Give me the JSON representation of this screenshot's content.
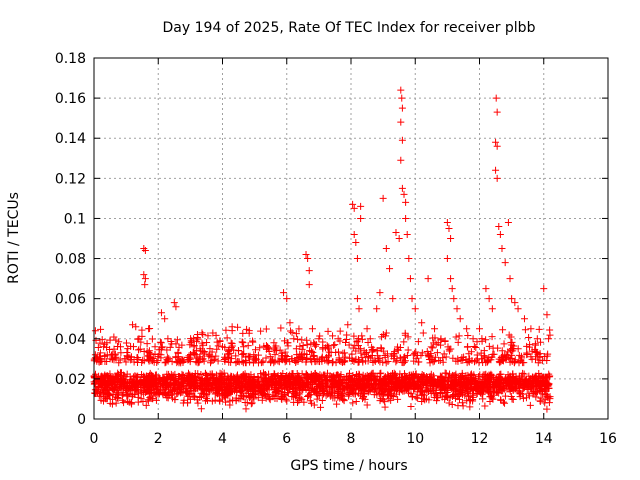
{
  "chart_data": {
    "type": "scatter",
    "title": "Day 194 of 2025, Rate Of TEC Index for receiver plbb",
    "xlabel": "GPS time / hours",
    "ylabel": "ROTI / TECUs",
    "xlim": [
      0,
      16
    ],
    "ylim": [
      0,
      0.18
    ],
    "xticks": [
      0,
      2,
      4,
      6,
      8,
      10,
      12,
      14,
      16
    ],
    "yticks": [
      0,
      0.02,
      0.04,
      0.06,
      0.08,
      0.1,
      0.12,
      0.14,
      0.16,
      0.18
    ],
    "xtick_labels": [
      "0",
      "2",
      "4",
      "6",
      "8",
      "10",
      "12",
      "14",
      "16"
    ],
    "ytick_labels": [
      "0",
      "0.02",
      "0.04",
      "0.06",
      "0.08",
      "0.1",
      "0.12",
      "0.14",
      "0.16",
      "0.18"
    ],
    "grid": true,
    "marker": "+",
    "color": "#ff0000",
    "series": [
      {
        "name": "ROTI",
        "dense_band": {
          "x_start": 0.0,
          "x_end": 14.2,
          "y_min": 0.004,
          "y_max": 0.028
        },
        "points": [
          [
            0.1,
            0.03
          ],
          [
            0.2,
            0.033
          ],
          [
            0.3,
            0.036
          ],
          [
            0.4,
            0.038
          ],
          [
            0.5,
            0.03
          ],
          [
            1.2,
            0.047
          ],
          [
            1.3,
            0.046
          ],
          [
            1.4,
            0.04
          ],
          [
            1.55,
            0.085
          ],
          [
            1.6,
            0.084
          ],
          [
            1.55,
            0.072
          ],
          [
            1.6,
            0.07
          ],
          [
            1.58,
            0.067
          ],
          [
            1.7,
            0.045
          ],
          [
            1.9,
            0.036
          ],
          [
            2.1,
            0.053
          ],
          [
            2.2,
            0.05
          ],
          [
            2.3,
            0.04
          ],
          [
            2.5,
            0.058
          ],
          [
            2.55,
            0.056
          ],
          [
            3.1,
            0.04
          ],
          [
            3.3,
            0.035
          ],
          [
            3.6,
            0.032
          ],
          [
            4.0,
            0.036
          ],
          [
            4.3,
            0.046
          ],
          [
            4.5,
            0.034
          ],
          [
            5.0,
            0.03
          ],
          [
            5.4,
            0.036
          ],
          [
            5.6,
            0.038
          ],
          [
            5.9,
            0.063
          ],
          [
            6.0,
            0.06
          ],
          [
            6.1,
            0.048
          ],
          [
            6.3,
            0.035
          ],
          [
            6.6,
            0.082
          ],
          [
            6.65,
            0.08
          ],
          [
            6.7,
            0.074
          ],
          [
            6.7,
            0.067
          ],
          [
            6.8,
            0.045
          ],
          [
            7.0,
            0.04
          ],
          [
            7.3,
            0.035
          ],
          [
            7.6,
            0.04
          ],
          [
            7.8,
            0.033
          ],
          [
            7.9,
            0.047
          ],
          [
            8.05,
            0.107
          ],
          [
            8.1,
            0.105
          ],
          [
            8.1,
            0.092
          ],
          [
            8.15,
            0.088
          ],
          [
            8.2,
            0.08
          ],
          [
            8.2,
            0.06
          ],
          [
            8.25,
            0.055
          ],
          [
            8.3,
            0.106
          ],
          [
            8.3,
            0.1
          ],
          [
            8.5,
            0.045
          ],
          [
            8.6,
            0.04
          ],
          [
            8.8,
            0.055
          ],
          [
            8.9,
            0.063
          ],
          [
            9.0,
            0.11
          ],
          [
            9.1,
            0.085
          ],
          [
            9.2,
            0.075
          ],
          [
            9.3,
            0.06
          ],
          [
            9.4,
            0.093
          ],
          [
            9.5,
            0.09
          ],
          [
            9.55,
            0.164
          ],
          [
            9.58,
            0.16
          ],
          [
            9.6,
            0.155
          ],
          [
            9.55,
            0.148
          ],
          [
            9.6,
            0.139
          ],
          [
            9.55,
            0.129
          ],
          [
            9.6,
            0.115
          ],
          [
            9.65,
            0.112
          ],
          [
            9.7,
            0.108
          ],
          [
            9.7,
            0.1
          ],
          [
            9.75,
            0.092
          ],
          [
            9.8,
            0.08
          ],
          [
            9.85,
            0.07
          ],
          [
            9.9,
            0.06
          ],
          [
            10.0,
            0.055
          ],
          [
            10.2,
            0.048
          ],
          [
            10.4,
            0.07
          ],
          [
            10.6,
            0.045
          ],
          [
            10.8,
            0.04
          ],
          [
            11.0,
            0.098
          ],
          [
            11.05,
            0.095
          ],
          [
            11.1,
            0.09
          ],
          [
            11.0,
            0.08
          ],
          [
            11.1,
            0.07
          ],
          [
            11.15,
            0.065
          ],
          [
            11.2,
            0.06
          ],
          [
            11.3,
            0.055
          ],
          [
            11.4,
            0.05
          ],
          [
            11.6,
            0.045
          ],
          [
            11.8,
            0.04
          ],
          [
            12.0,
            0.045
          ],
          [
            12.2,
            0.065
          ],
          [
            12.3,
            0.06
          ],
          [
            12.4,
            0.055
          ],
          [
            12.52,
            0.16
          ],
          [
            12.55,
            0.153
          ],
          [
            12.5,
            0.138
          ],
          [
            12.55,
            0.136
          ],
          [
            12.5,
            0.124
          ],
          [
            12.55,
            0.12
          ],
          [
            12.6,
            0.096
          ],
          [
            12.65,
            0.092
          ],
          [
            12.7,
            0.085
          ],
          [
            12.8,
            0.078
          ],
          [
            12.9,
            0.098
          ],
          [
            12.95,
            0.07
          ],
          [
            13.0,
            0.06
          ],
          [
            13.1,
            0.058
          ],
          [
            13.2,
            0.055
          ],
          [
            13.4,
            0.05
          ],
          [
            13.6,
            0.045
          ],
          [
            13.8,
            0.04
          ],
          [
            14.0,
            0.065
          ],
          [
            14.1,
            0.052
          ],
          [
            14.15,
            0.04
          ]
        ]
      }
    ]
  }
}
